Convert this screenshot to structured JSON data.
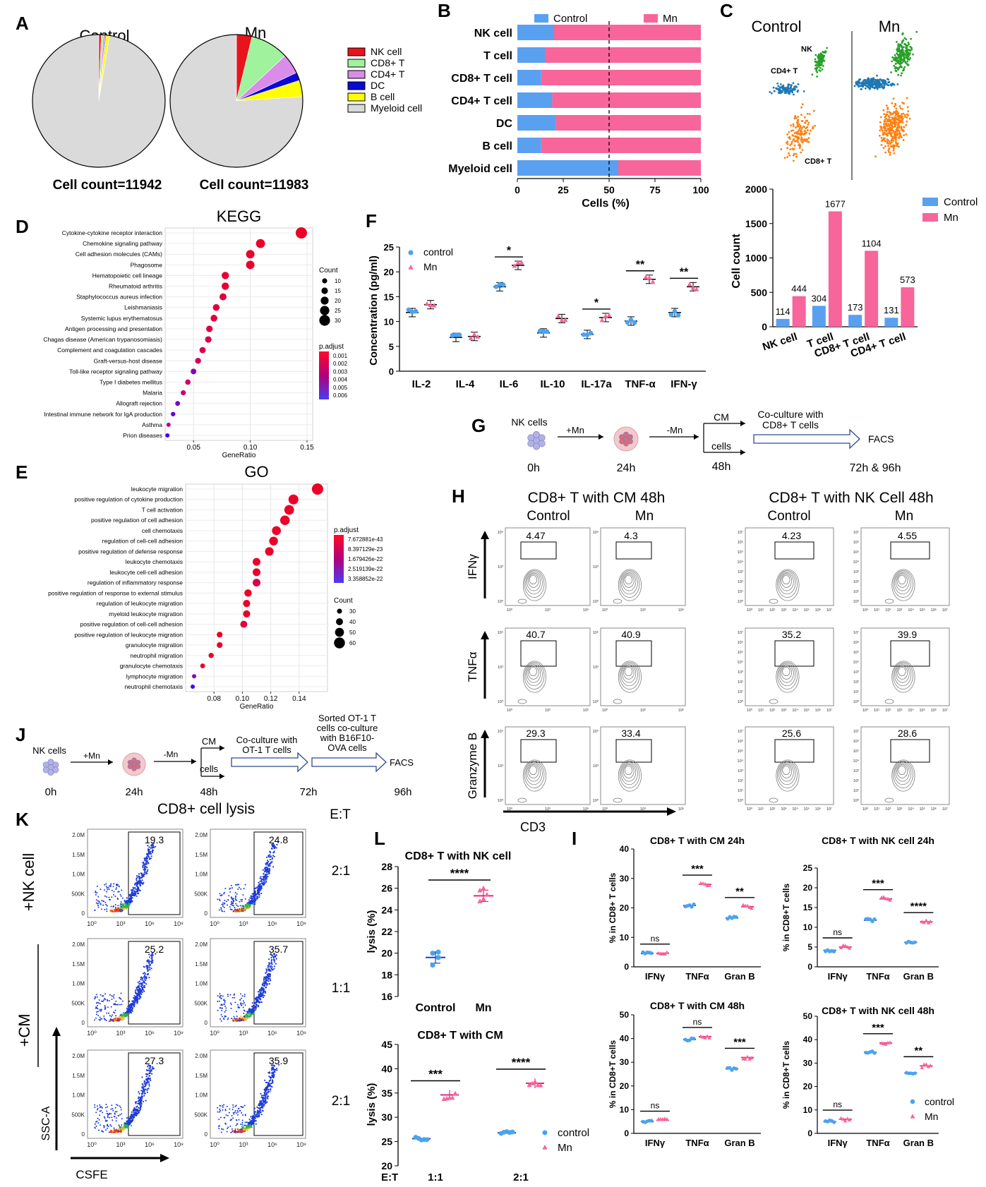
{
  "panels": {
    "A": {
      "letter": "A",
      "pies": [
        {
          "title": "Control",
          "count_label": "Cell count=11942",
          "slices": [
            0.6,
            0.5,
            0.5,
            0.2,
            0.8,
            97.4
          ]
        },
        {
          "title": "Mn",
          "count_label": "Cell count=11983",
          "slices": [
            3.8,
            9.3,
            4.9,
            2.0,
            4.0,
            76.0
          ]
        }
      ],
      "legend": [
        {
          "label": "NK cell",
          "color": "#e8141c"
        },
        {
          "label": "CD8+ T",
          "color": "#a0f29c"
        },
        {
          "label": "CD4+ T",
          "color": "#d98ce8"
        },
        {
          "label": "DC",
          "color": "#0a0ad4"
        },
        {
          "label": "B cell",
          "color": "#ffff00"
        },
        {
          "label": "Myeloid cell",
          "color": "#dadada"
        }
      ]
    },
    "B": {
      "letter": "B",
      "chart_data": {
        "type": "bar",
        "orientation": "horizontal-stacked",
        "categories": [
          "NK cell",
          "T cell",
          "CD8+ T cell",
          "CD4+ T cell",
          "DC",
          "B cell",
          "Myeloid cell"
        ],
        "series": [
          {
            "name": "Control",
            "color": "#5aa0f0",
            "values": [
              20,
              15,
              13,
              19,
              21,
              13,
              55
            ]
          },
          {
            "name": "Mn",
            "color": "#f7659a",
            "values": [
              80,
              85,
              87,
              81,
              79,
              87,
              45
            ]
          }
        ],
        "xlabel": "Cells (%)",
        "xticks": [
          "0",
          "25",
          "50",
          "75",
          "100"
        ],
        "xlim": [
          0,
          100
        ],
        "reference_line": 50
      }
    },
    "C": {
      "letter": "C",
      "umap_titles": [
        "Control",
        "Mn"
      ],
      "cluster_labels": [
        "NK",
        "CD4+ T",
        "CD8+ T"
      ],
      "cluster_colors": [
        "#2aa02a",
        "#1f77b4",
        "#ff7f0e"
      ],
      "chart_data": {
        "type": "bar",
        "categories": [
          "NK cell",
          "T cell",
          "CD8+ T cell",
          "CD4+ T cell"
        ],
        "series": [
          {
            "name": "Control",
            "color": "#5aa0f0",
            "values": [
              114,
              304,
              173,
              131
            ]
          },
          {
            "name": "Mn",
            "color": "#f7659a",
            "values": [
              444,
              1677,
              1104,
              573
            ]
          }
        ],
        "ylabel": "Cell count",
        "ylim": [
          0,
          2000
        ],
        "yticks": [
          "0",
          "500",
          "1000",
          "1500",
          "2000"
        ]
      }
    },
    "D": {
      "letter": "D",
      "chart_data": {
        "type": "scatter",
        "title": "KEGG",
        "xlabel": "GeneRatio",
        "xlim": [
          0.025,
          0.155
        ],
        "xticks": [
          {
            "v": 0.05,
            "t": "0.05"
          },
          {
            "v": 0.1,
            "t": "0.10"
          },
          {
            "v": 0.15,
            "t": "0.15"
          }
        ],
        "terms": [
          "Cytokine-cytokine receptor interaction",
          "Chemokine signaling pathway",
          "Cell adhesion molecules (CAMs)",
          "Phagosome",
          "Hematopoietic cell lineage",
          "Rheumatoid arthritis",
          "Staphylococcus aureus infection",
          "Leishmaniasis",
          "Systemic lupus erythematosus",
          "Antigen processing and presentation",
          "Chagas disease (American trypanosomiasis)",
          "Complement and coagulation cascades",
          "Graft-versus-host disease",
          "Toll-like receptor signaling pathway",
          "Type I diabetes mellitus",
          "Malaria",
          "Allograft rejection",
          "Intestinal immune network for IgA production",
          "Asthma",
          "Prion diseases"
        ],
        "x": [
          0.145,
          0.109,
          0.1,
          0.1,
          0.078,
          0.078,
          0.076,
          0.07,
          0.068,
          0.064,
          0.063,
          0.058,
          0.054,
          0.05,
          0.045,
          0.041,
          0.036,
          0.032,
          0.028,
          0.027
        ],
        "sizes": [
          32,
          24,
          22,
          22,
          18,
          18,
          17,
          16,
          16,
          15,
          15,
          14,
          13,
          12,
          11,
          10,
          9,
          8,
          7,
          7
        ],
        "padj": [
          0.0,
          0.0,
          0.0001,
          0.0001,
          0.0003,
          0.0003,
          0.0004,
          0.0005,
          0.0005,
          0.0008,
          0.0008,
          0.001,
          0.0012,
          0.004,
          0.0015,
          0.002,
          0.0045,
          0.005,
          0.0025,
          0.006
        ],
        "size_legend_title": "Count",
        "size_legend": [
          {
            "v": 10,
            "t": "10"
          },
          {
            "v": 15,
            "t": "15"
          },
          {
            "v": 20,
            "t": "20"
          },
          {
            "v": 25,
            "t": "25"
          },
          {
            "v": 30,
            "t": "30"
          }
        ],
        "color_legend_title": "p.adjust",
        "color_legend": [
          "0.001",
          "0.002",
          "0.003",
          "0.004",
          "0.005",
          "0.006"
        ]
      }
    },
    "E": {
      "letter": "E",
      "chart_data": {
        "type": "scatter",
        "title": "GO",
        "xlabel": "GeneRatio",
        "xlim": [
          0.06,
          0.16
        ],
        "xticks": [
          {
            "v": 0.08,
            "t": "0.08"
          },
          {
            "v": 0.1,
            "t": "0.10"
          },
          {
            "v": 0.12,
            "t": "0.12"
          },
          {
            "v": 0.14,
            "t": "0.14"
          }
        ],
        "terms": [
          "leukocyte migration",
          "positive regulation of cytokine production",
          "T cell activation",
          "positive regulation of cell adhesion",
          "cell chemotaxis",
          "regulation of cell-cell adhesion",
          "positive regulation of defense response",
          "leukocyte chemotaxis",
          "leukocyte cell-cell adhesion",
          "regulation of inflammatory response",
          "positive regulation of response to external stimulus",
          "regulation of leukocyte migration",
          "myeloid leukocyte migration",
          "positive regulation of cell-cell adhesion",
          "positive regulation of leukocyte migration",
          "granulocyte migration",
          "neutrophil migration",
          "granulocyte chemotaxis",
          "lymphocyte migration",
          "neutrophil chemotaxis"
        ],
        "x": [
          0.153,
          0.136,
          0.133,
          0.13,
          0.124,
          0.122,
          0.119,
          0.11,
          0.11,
          0.11,
          0.104,
          0.103,
          0.103,
          0.101,
          0.084,
          0.084,
          0.078,
          0.072,
          0.066,
          0.065
        ],
        "sizes": [
          62,
          55,
          54,
          53,
          50,
          49,
          48,
          44,
          44,
          44,
          42,
          41,
          41,
          40,
          34,
          34,
          31,
          29,
          26,
          26
        ],
        "padj": [
          0,
          0,
          0,
          0,
          0,
          0,
          0,
          0,
          0,
          0.05,
          0,
          0,
          0,
          0.03,
          0,
          0,
          0,
          0,
          0.25,
          0.38
        ],
        "size_legend_title": "Count",
        "size_legend": [
          {
            "v": 30,
            "t": "30"
          },
          {
            "v": 40,
            "t": "40"
          },
          {
            "v": 50,
            "t": "50"
          },
          {
            "v": 60,
            "t": "60"
          }
        ],
        "color_legend_title": "p.adjust",
        "color_legend": [
          "7.672881e-43",
          "8.397129e-23",
          "1.679426e-22",
          "2.519139e-22",
          "3.358852e-22"
        ]
      }
    },
    "F": {
      "letter": "F",
      "chart_data": {
        "type": "scatter",
        "categories": [
          "IL-2",
          "IL-4",
          "IL-6",
          "IL-10",
          "IL-17a",
          "TNF-α",
          "IFN-γ"
        ],
        "series": [
          {
            "name": "control",
            "color": "#4aa3f0",
            "values": [
              11.8,
              6.8,
              17.0,
              7.7,
              7.4,
              10.1,
              11.8
            ]
          },
          {
            "name": "Mn",
            "color": "#f7659a",
            "values": [
              13.4,
              7.0,
              21.3,
              10.6,
              10.8,
              18.5,
              17.0
            ]
          }
        ],
        "significance": [
          "",
          "",
          "*",
          "",
          "*",
          "**",
          "**"
        ],
        "ylabel": "Concentration (pg/ml)",
        "ylim": [
          0,
          25
        ],
        "yticks": [
          "0",
          "5",
          "10",
          "15",
          "20",
          "25"
        ]
      }
    },
    "G": {
      "letter": "G",
      "nk_label": "NK cells",
      "plus_mn": "+Mn",
      "minus_mn": "-Mn",
      "cm": "CM",
      "cells": "cells",
      "coculture": [
        "Co-culture with",
        "CD8+ T cells"
      ],
      "facs": "FACS",
      "times": [
        "0h",
        "24h",
        "48h",
        "72h & 96h"
      ]
    },
    "H": {
      "letter": "H",
      "group_titles": [
        "CD8+ T with CM 48h",
        "CD8+ T with NK Cell 48h"
      ],
      "subtitles": [
        "Control",
        "Mn",
        "Control",
        "Mn"
      ],
      "row_labels": [
        "IFNγ",
        "TNFα",
        "Granzyme B"
      ],
      "xaxis_label": "CD3",
      "values": [
        [
          "4.47",
          "4.3",
          "4.23",
          "4.55"
        ],
        [
          "40.7",
          "40.9",
          "35.2",
          "39.9"
        ],
        [
          "29.3",
          "33.4",
          "25.6",
          "28.6"
        ]
      ],
      "tick_labels_cm": [
        "10⁰",
        "10³",
        "10⁶"
      ],
      "tick_labels_nk": [
        "10⁰",
        "10¹",
        "10²",
        "10³",
        "10⁴",
        "10⁵",
        "10⁶",
        "10⁷"
      ]
    },
    "I": {
      "letter": "I",
      "charts": [
        {
          "title": "CD8+ T with CM 24h",
          "ylabel": "% in CD8+ T cells",
          "ylim": [
            0,
            40
          ],
          "yticks": [
            "0",
            "10",
            "20",
            "30",
            "40"
          ],
          "categories": [
            "IFNγ",
            "TNFα",
            "Gran B"
          ],
          "control": [
            4.5,
            20.8,
            16.6
          ],
          "mn": [
            4.6,
            28.0,
            20.4
          ],
          "sig": [
            "ns",
            "***",
            "**"
          ]
        },
        {
          "title": "CD8+ T with NK cell 24h",
          "ylabel": "% in CD8+T cells",
          "ylim": [
            0,
            25
          ],
          "yticks": [
            "0",
            "5",
            "10",
            "15",
            "20",
            "25"
          ],
          "categories": [
            "IFNγ",
            "TNFα",
            "Gran B"
          ],
          "control": [
            4.2,
            11.8,
            6.2
          ],
          "mn": [
            5.0,
            17.2,
            11.4
          ],
          "sig": [
            "ns",
            "***",
            "****"
          ]
        },
        {
          "title": "CD8+ T with CM 48h",
          "ylabel": "% in CD8+T cells",
          "ylim": [
            0,
            50
          ],
          "yticks": [
            "0",
            "10",
            "20",
            "30",
            "40",
            "50"
          ],
          "categories": [
            "IFNγ",
            "TNFα",
            "Gran B"
          ],
          "control": [
            5.0,
            39.6,
            27.2
          ],
          "mn": [
            5.5,
            40.8,
            32.0
          ],
          "sig": [
            "ns",
            "ns",
            "***"
          ]
        },
        {
          "title": "CD8+ T with NK cell 48h",
          "ylabel": "% in CD8+T cells",
          "ylim": [
            0,
            50
          ],
          "yticks": [
            "0",
            "10",
            "20",
            "30",
            "40",
            "50"
          ],
          "categories": [
            "IFNγ",
            "TNFα",
            "Gran B"
          ],
          "control": [
            5.0,
            34.6,
            25.8
          ],
          "mn": [
            6.0,
            38.6,
            28.8
          ],
          "sig": [
            "ns",
            "***",
            "**"
          ]
        }
      ],
      "legend": [
        {
          "label": "control",
          "color": "#4aa3f0"
        },
        {
          "label": "Mn",
          "color": "#f7659a"
        }
      ]
    },
    "J": {
      "letter": "J",
      "nk_label": "NK cells",
      "plus_mn": "+Mn",
      "minus_mn": "-Mn",
      "cm": "CM",
      "cells": "cells",
      "coculture": [
        "Co-culture with",
        "OT-1 T cells"
      ],
      "sorted": [
        "Sorted OT-1 T",
        "cells co-culture",
        "with B16F10-",
        "OVA cells"
      ],
      "facs": "FACS",
      "times": [
        "0h",
        "24h",
        "48h",
        "72h",
        "96h"
      ]
    },
    "K": {
      "letter": "K",
      "title": "CD8+ cell lysis",
      "et_header": "E:T",
      "row_group_labels": [
        "+NK cell",
        "+CM"
      ],
      "et_labels": [
        "2:1",
        "1:1",
        "2:1"
      ],
      "values": [
        [
          "19.3",
          "24.8"
        ],
        [
          "25.2",
          "35.7"
        ],
        [
          "27.3",
          "35.9"
        ]
      ],
      "yticks": [
        "0",
        "500K",
        "1.0M",
        "1.5M",
        "2.0M"
      ],
      "xticks": [
        "10⁰",
        "10³",
        "10⁶",
        "10⁹"
      ],
      "ylabel": "SSC-A",
      "xlabel": "CSFE"
    },
    "L": {
      "letter": "L",
      "top": {
        "title": "CD8+ T with NK cell",
        "ylabel": "lysis (%)",
        "ylim": [
          16,
          28
        ],
        "yticks": [
          "16",
          "18",
          "20",
          "22",
          "24",
          "26",
          "28"
        ],
        "categories": [
          "Control",
          "Mn"
        ],
        "means": [
          19.6,
          25.3
        ],
        "control": [
          18.9,
          19.6,
          20.0,
          20.1
        ],
        "mn": [
          24.8,
          25.0,
          25.4,
          25.8,
          26.0
        ],
        "sig": "****"
      },
      "bottom": {
        "title": "CD8+ T with CM",
        "ylabel": "lysis (%)",
        "ylim": [
          20,
          45
        ],
        "yticks": [
          "20",
          "25",
          "30",
          "35",
          "40",
          "45"
        ],
        "et_label": "E:T",
        "categories": [
          "1:1",
          "2:1"
        ],
        "control": [
          25.6,
          26.8
        ],
        "mn": [
          34.6,
          37.0
        ],
        "sig": [
          "***",
          "****"
        ],
        "legend": [
          {
            "label": "control",
            "color": "#4aa3f0"
          },
          {
            "label": "Mn",
            "color": "#f7659a"
          }
        ]
      }
    }
  }
}
